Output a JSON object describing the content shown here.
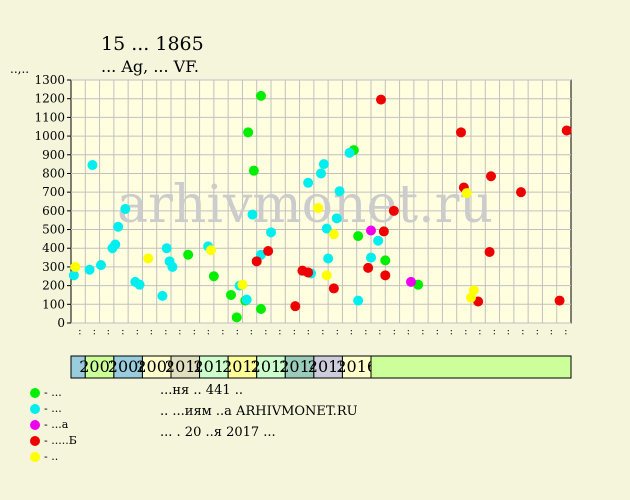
{
  "title": "15 ... 1865",
  "subtitle": "... Ag, ... VF.",
  "y_unit": "..,..",
  "notes": [
    "...ня .. 441 ..",
    ".. ...иям ..а ARHIVMONET.RU",
    "... . 20 ..я 2017 ..."
  ],
  "legend": [
    {
      "label": "- ...",
      "color": "#00ee00"
    },
    {
      "label": "- ...",
      "color": "#00eeee"
    },
    {
      "label": "- ...а",
      "color": "#ee00ee"
    },
    {
      "label": "- .....Б",
      "color": "#ee0000"
    },
    {
      "label": "- ..",
      "color": "#ffff00"
    }
  ],
  "colors": {
    "background": "#f5f5dc",
    "plot": "#ffffe0",
    "grid": "#c0c0c0",
    "watermark": "#cccccc"
  },
  "chart_data": {
    "type": "scatter",
    "watermark": "arhivmonet.ru",
    "ylim": [
      0,
      1300
    ],
    "yticks": [
      0,
      100,
      200,
      300,
      400,
      500,
      600,
      700,
      800,
      900,
      1000,
      1100,
      1200,
      1300
    ],
    "periods": [
      "..",
      "..",
      "..",
      "..",
      "..",
      "..",
      "..",
      "..",
      "..",
      "..",
      "..",
      "..",
      "..",
      "..",
      "..",
      "..",
      "..",
      "..",
      "..",
      "..",
      "..",
      "..",
      "..",
      "..",
      "..",
      "..",
      "..",
      "..",
      "..",
      "..",
      "..",
      "..",
      "..",
      "..",
      "..",
      "..",
      "..",
      "..",
      "..",
      "..",
      "..",
      "..",
      "..",
      "..",
      "..",
      "..",
      "..",
      "..",
      "..",
      ".."
    ],
    "years": [
      {
        "label": "2007",
        "start": 2,
        "end": 6,
        "color": "#ccff99"
      },
      {
        "label": "2008",
        "start": 6,
        "end": 10,
        "color": "#99ccdd"
      },
      {
        "label": "2009",
        "start": 10,
        "end": 14,
        "color": "#ffffcc"
      },
      {
        "label": "2010",
        "start": 14,
        "end": 18,
        "color": "#e0e0c0"
      },
      {
        "label": "2011",
        "start": 18,
        "end": 22,
        "color": "#ccffcc"
      },
      {
        "label": "2012",
        "start": 22,
        "end": 26,
        "color": "#ffff99"
      },
      {
        "label": "2013",
        "start": 26,
        "end": 30,
        "color": "#ccffcc"
      },
      {
        "label": "2014",
        "start": 30,
        "end": 34,
        "color": "#99ccbb"
      },
      {
        "label": "2015",
        "start": 34,
        "end": 38,
        "color": "#ccccdd"
      },
      {
        "label": "2016",
        "start": 38,
        "end": 42,
        "color": "#ffffcc"
      }
    ],
    "series": [
      {
        "color": "#00ee00",
        "points": [
          {
            "x": 8.2,
            "y": 365
          },
          {
            "x": 10.0,
            "y": 250
          },
          {
            "x": 11.2,
            "y": 150
          },
          {
            "x": 11.6,
            "y": 30
          },
          {
            "x": 12.2,
            "y": 120
          },
          {
            "x": 12.4,
            "y": 1020
          },
          {
            "x": 12.8,
            "y": 815
          },
          {
            "x": 13.3,
            "y": 75
          },
          {
            "x": 13.3,
            "y": 1215
          },
          {
            "x": 19.8,
            "y": 925
          },
          {
            "x": 20.1,
            "y": 465
          },
          {
            "x": 22.0,
            "y": 335
          },
          {
            "x": 24.3,
            "y": 205
          }
        ]
      },
      {
        "color": "#00eeee",
        "points": [
          {
            "x": 0.2,
            "y": 255
          },
          {
            "x": 1.3,
            "y": 285
          },
          {
            "x": 1.5,
            "y": 845
          },
          {
            "x": 2.1,
            "y": 310
          },
          {
            "x": 2.9,
            "y": 400
          },
          {
            "x": 3.1,
            "y": 420
          },
          {
            "x": 3.3,
            "y": 515
          },
          {
            "x": 3.8,
            "y": 610
          },
          {
            "x": 4.5,
            "y": 220
          },
          {
            "x": 4.8,
            "y": 205
          },
          {
            "x": 6.4,
            "y": 145
          },
          {
            "x": 6.7,
            "y": 400
          },
          {
            "x": 6.9,
            "y": 330
          },
          {
            "x": 7.1,
            "y": 300
          },
          {
            "x": 9.6,
            "y": 410
          },
          {
            "x": 11.8,
            "y": 200
          },
          {
            "x": 12.3,
            "y": 125
          },
          {
            "x": 12.7,
            "y": 580
          },
          {
            "x": 13.3,
            "y": 365
          },
          {
            "x": 14.0,
            "y": 485
          },
          {
            "x": 16.6,
            "y": 750
          },
          {
            "x": 16.8,
            "y": 265
          },
          {
            "x": 17.5,
            "y": 800
          },
          {
            "x": 17.7,
            "y": 850
          },
          {
            "x": 17.9,
            "y": 505
          },
          {
            "x": 18.0,
            "y": 345
          },
          {
            "x": 18.6,
            "y": 560
          },
          {
            "x": 18.8,
            "y": 705
          },
          {
            "x": 19.5,
            "y": 910
          },
          {
            "x": 20.1,
            "y": 120
          },
          {
            "x": 21.0,
            "y": 350
          },
          {
            "x": 21.5,
            "y": 440
          }
        ]
      },
      {
        "color": "#ee00ee",
        "points": [
          {
            "x": 21.0,
            "y": 495
          },
          {
            "x": 23.8,
            "y": 220
          }
        ]
      },
      {
        "color": "#ee0000",
        "points": [
          {
            "x": 13.0,
            "y": 330
          },
          {
            "x": 13.8,
            "y": 385
          },
          {
            "x": 15.7,
            "y": 90
          },
          {
            "x": 16.2,
            "y": 280
          },
          {
            "x": 16.6,
            "y": 270
          },
          {
            "x": 18.4,
            "y": 185
          },
          {
            "x": 20.8,
            "y": 295
          },
          {
            "x": 21.7,
            "y": 1195
          },
          {
            "x": 21.9,
            "y": 490
          },
          {
            "x": 22.0,
            "y": 255
          },
          {
            "x": 22.6,
            "y": 600
          },
          {
            "x": 27.3,
            "y": 1020
          },
          {
            "x": 27.5,
            "y": 725
          },
          {
            "x": 28.5,
            "y": 115
          },
          {
            "x": 29.3,
            "y": 380
          },
          {
            "x": 29.4,
            "y": 785
          },
          {
            "x": 31.5,
            "y": 700
          },
          {
            "x": 34.2,
            "y": 120
          },
          {
            "x": 34.7,
            "y": 1030
          }
        ]
      },
      {
        "color": "#ffff00",
        "points": [
          {
            "x": 0.3,
            "y": 300
          },
          {
            "x": 5.4,
            "y": 345
          },
          {
            "x": 9.8,
            "y": 390
          },
          {
            "x": 12.0,
            "y": 205
          },
          {
            "x": 17.3,
            "y": 615
          },
          {
            "x": 17.9,
            "y": 255
          },
          {
            "x": 18.4,
            "y": 475
          },
          {
            "x": 27.7,
            "y": 695
          },
          {
            "x": 28.0,
            "y": 135
          },
          {
            "x": 28.2,
            "y": 175
          }
        ]
      }
    ]
  }
}
